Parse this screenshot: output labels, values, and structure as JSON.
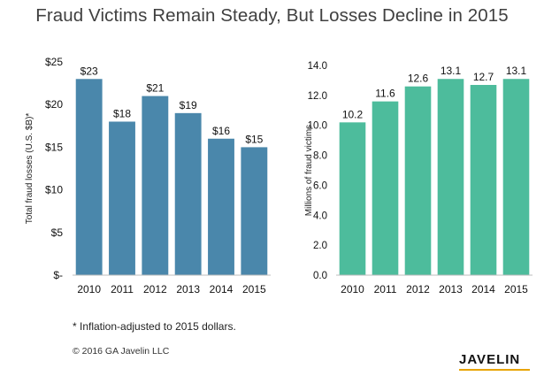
{
  "title": "Fraud Victims Remain Steady, But Losses Decline in 2015",
  "footnote": "* Inflation-adjusted to 2015 dollars.",
  "copyright": "© 2016 GA Javelin LLC",
  "brand": "JAVELIN",
  "chart_data": [
    {
      "type": "bar",
      "categories": [
        "2010",
        "2011",
        "2012",
        "2013",
        "2014",
        "2015"
      ],
      "values": [
        23,
        18,
        21,
        19,
        16,
        15
      ],
      "data_labels": [
        "$23",
        "$18",
        "$21",
        "$19",
        "$16",
        "$15"
      ],
      "ylabel": "Total fraud losses (U.S. $B)*",
      "ylim": [
        0,
        25
      ],
      "yticks": [
        0,
        5,
        10,
        15,
        20,
        25
      ],
      "ytick_labels": [
        "$-",
        "$5",
        "$10",
        "$15",
        "$20",
        "$25"
      ],
      "color": "#4a87ab",
      "grid": false
    },
    {
      "type": "bar",
      "categories": [
        "2010",
        "2011",
        "2012",
        "2013",
        "2014",
        "2015"
      ],
      "values": [
        10.2,
        11.6,
        12.6,
        13.1,
        12.7,
        13.1
      ],
      "data_labels": [
        "10.2",
        "11.6",
        "12.6",
        "13.1",
        "12.7",
        "13.1"
      ],
      "ylabel": "Millions of fraud victims",
      "ylim": [
        0,
        14
      ],
      "yticks": [
        0,
        2,
        4,
        6,
        8,
        10,
        12,
        14
      ],
      "ytick_labels": [
        "0.0",
        "2.0",
        "4.0",
        "6.0",
        "8.0",
        "10.0",
        "12.0",
        "14.0"
      ],
      "color": "#4dbc9c",
      "grid": false
    }
  ]
}
